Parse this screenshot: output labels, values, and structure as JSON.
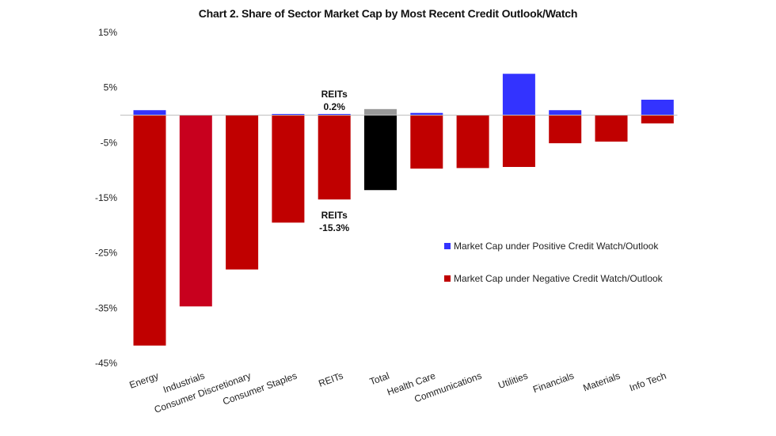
{
  "chart_data": {
    "type": "bar",
    "title": "Chart 2. Share of Sector Market Cap by Most Recent Credit Outlook/Watch",
    "categories": [
      "Energy",
      "Industrials",
      "Consumer Discretionary",
      "Consumer Staples",
      "REITs",
      "Total",
      "Health Care",
      "Communications",
      "Utilities",
      "Financials",
      "Materials",
      "Info Tech"
    ],
    "series": [
      {
        "name": "Market Cap under Positive Credit Watch/Outlook",
        "color": "#3333ff",
        "values": [
          0.9,
          0.0,
          0.0,
          0.2,
          0.2,
          1.1,
          0.4,
          0.0,
          7.5,
          0.9,
          0.0,
          2.8
        ]
      },
      {
        "name": "Market Cap under Negative Credit Watch/Outlook",
        "color": "#c00000",
        "values": [
          -41.8,
          -34.7,
          -28.0,
          -19.5,
          -15.3,
          -13.6,
          -9.7,
          -9.6,
          -9.4,
          -5.1,
          -4.8,
          -1.5
        ]
      }
    ],
    "special_colors": {
      "Industrials_negative": "#c8001e",
      "Total_positive": "#999999",
      "Total_negative": "#000000"
    },
    "ylim": [
      -45,
      15
    ],
    "yticks": [
      "15%",
      "5%",
      "-5%",
      "-15%",
      "-25%",
      "-35%",
      "-45%"
    ],
    "ytick_values": [
      15,
      5,
      -5,
      -15,
      -25,
      -35,
      -45
    ],
    "legend_position": "right",
    "annotations": [
      {
        "line1": "REITs",
        "line2": "0.2%"
      },
      {
        "line1": "REITs",
        "line2": "-15.3%"
      }
    ],
    "grid": false
  }
}
